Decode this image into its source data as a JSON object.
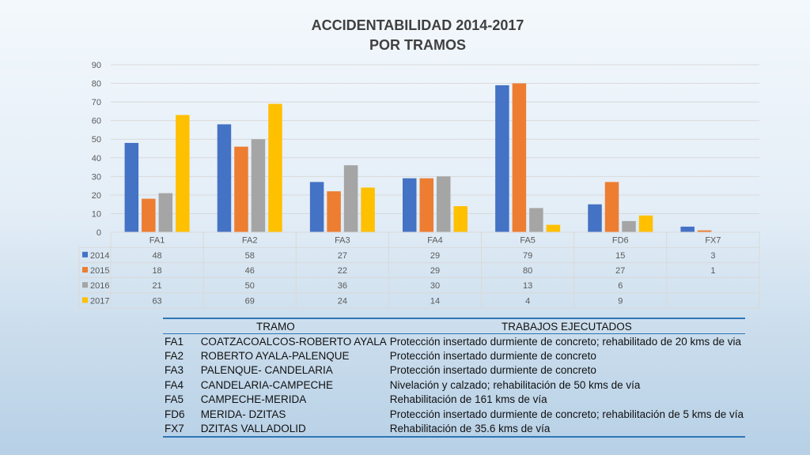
{
  "chart_data": {
    "type": "bar",
    "title": [
      "ACCIDENTABILIDAD 2014-2017",
      "POR TRAMOS"
    ],
    "categories": [
      "FA1",
      "FA2",
      "FA3",
      "FA4",
      "FA5",
      "FD6",
      "FX7"
    ],
    "series": [
      {
        "name": "2014",
        "color": "#4472c4",
        "values": [
          48,
          58,
          27,
          29,
          79,
          15,
          3
        ]
      },
      {
        "name": "2015",
        "color": "#ed7d31",
        "values": [
          18,
          46,
          22,
          29,
          80,
          27,
          1
        ]
      },
      {
        "name": "2016",
        "color": "#a5a5a5",
        "values": [
          21,
          50,
          36,
          30,
          13,
          6,
          null
        ]
      },
      {
        "name": "2017",
        "color": "#ffc000",
        "values": [
          63,
          69,
          24,
          14,
          4,
          9,
          null
        ]
      }
    ],
    "ylim": [
      0,
      90
    ],
    "yticks": [
      0,
      10,
      20,
      30,
      40,
      50,
      60,
      70,
      80,
      90
    ],
    "grid": true,
    "legend": "data table"
  },
  "table": {
    "headers": [
      "TRAMO",
      "TRABAJOS EJECUTADOS"
    ],
    "rows": [
      {
        "code": "FA1",
        "name": "COATZACOALCOS-ROBERTO AYALA",
        "work": "Protección insertado durmiente de concreto; rehabilitado de 20 kms de via"
      },
      {
        "code": "FA2",
        "name": "ROBERTO AYALA-PALENQUE",
        "work": "Protección insertado durmiente de concreto"
      },
      {
        "code": "FA3",
        "name": "PALENQUE- CANDELARIA",
        "work": "Protección insertado durmiente de concreto"
      },
      {
        "code": "FA4",
        "name": "CANDELARIA-CAMPECHE",
        "work": "Nivelación y calzado; rehabilitación de 50 kms de vía"
      },
      {
        "code": "FA5",
        "name": "CAMPECHE-MERIDA",
        "work": "Rehabilitación de 161 kms de vía"
      },
      {
        "code": "FD6",
        "name": "MERIDA- DZITAS",
        "work": "Protección insertado durmiente de concreto; rehabilitación de 5 kms de vía"
      },
      {
        "code": "FX7",
        "name": "DZITAS VALLADOLID",
        "work": "Rehabilitación de 35.6 kms de vía"
      }
    ]
  }
}
